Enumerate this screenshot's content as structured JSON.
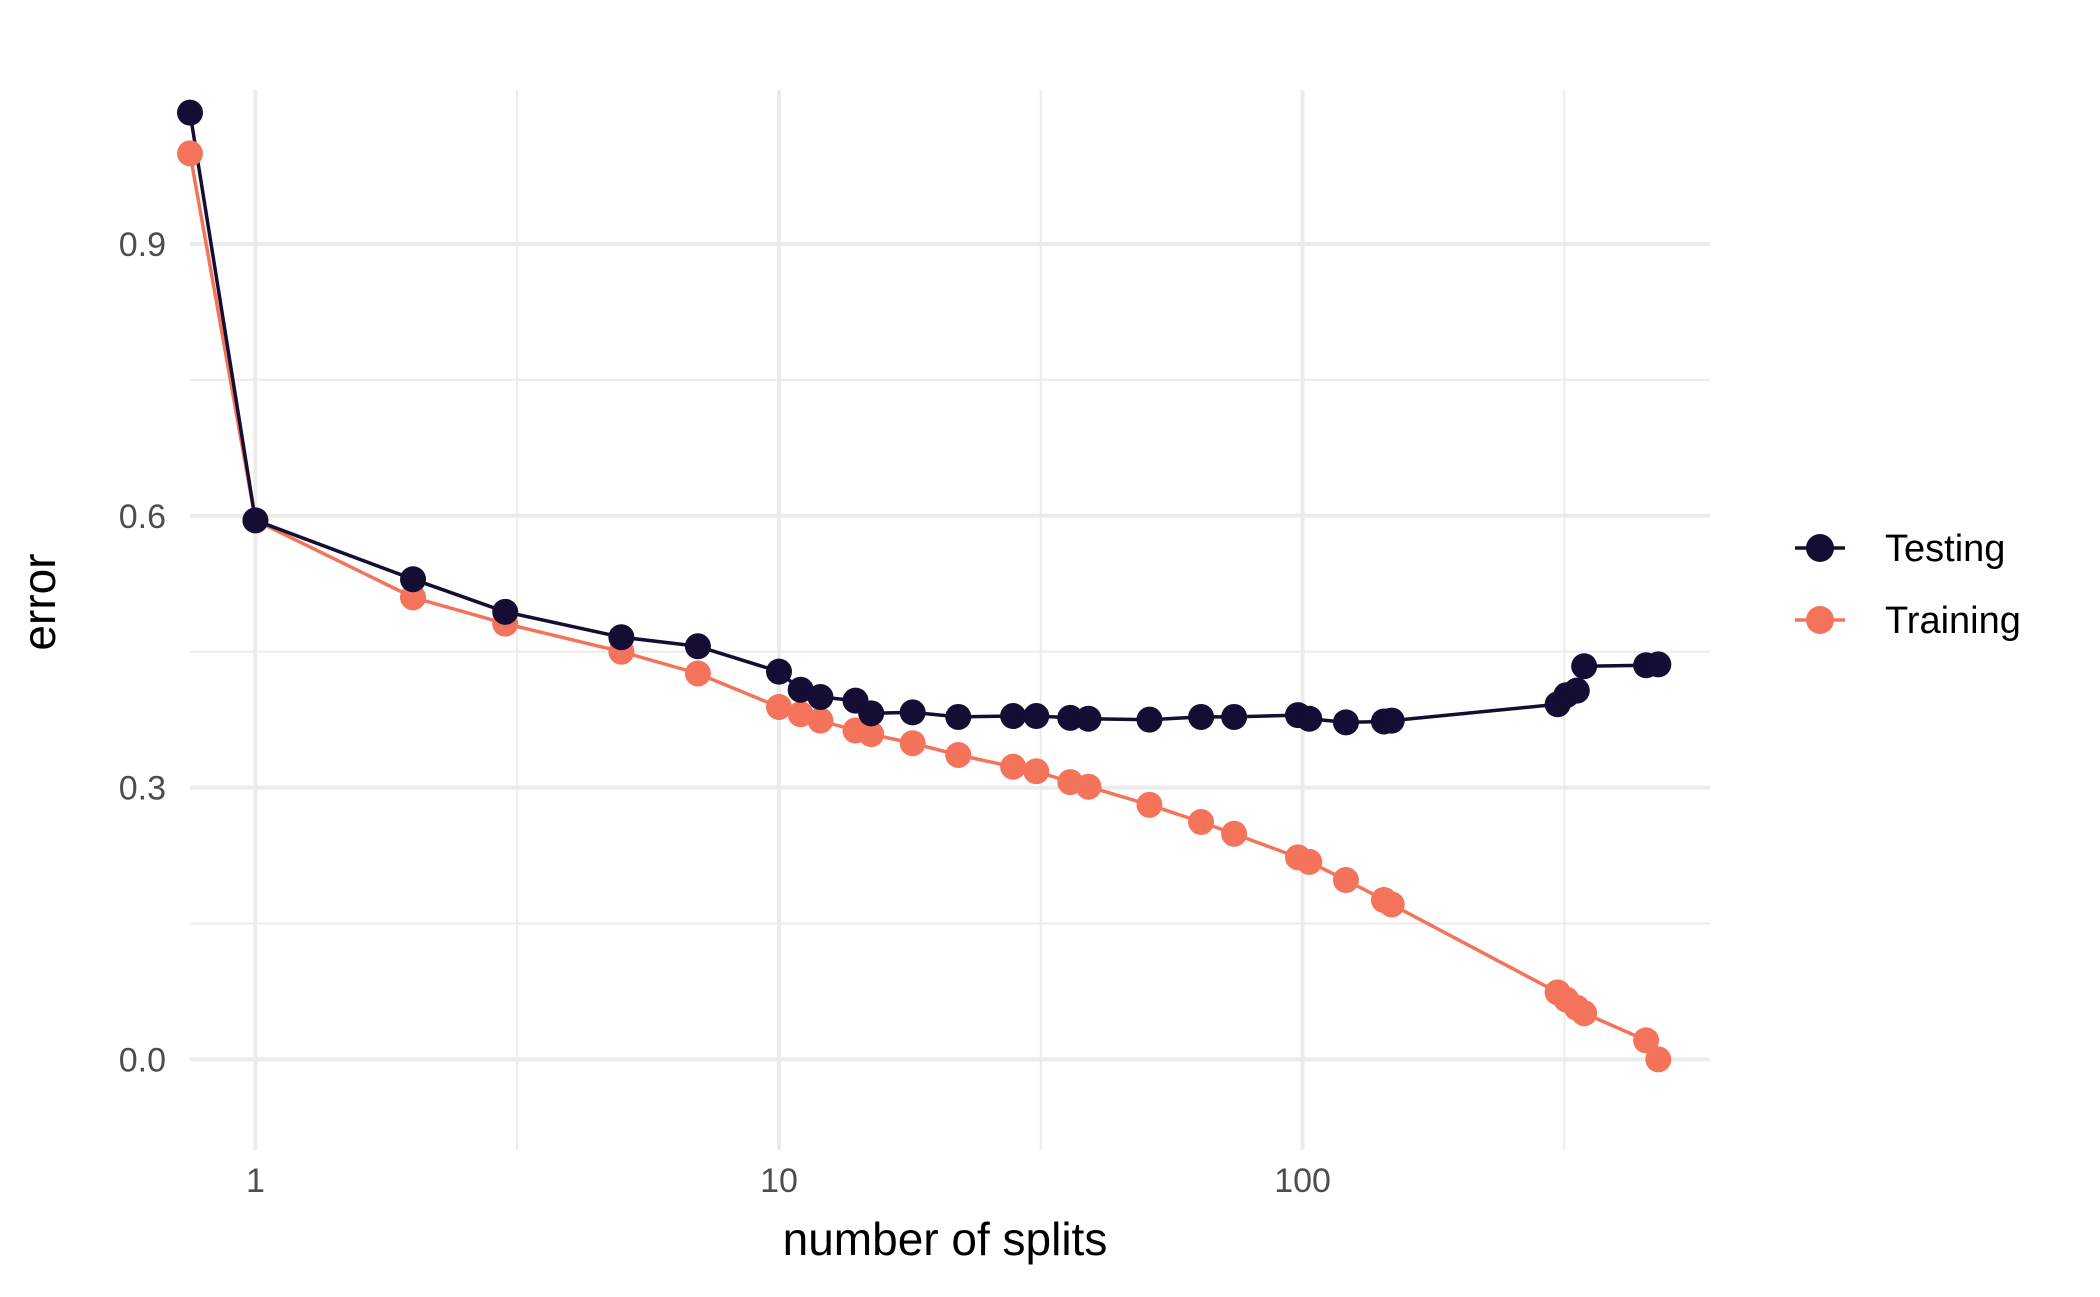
{
  "chart_data": {
    "type": "line",
    "xlabel": "number of splits",
    "ylabel": "error",
    "x_scale": "log10",
    "xlim": [
      0.75,
      600
    ],
    "ylim": [
      -0.1,
      1.07
    ],
    "x_ticks": [
      1,
      10,
      100
    ],
    "x_tick_labels": [
      "1",
      "10",
      "100"
    ],
    "y_ticks": [
      0.0,
      0.3,
      0.6,
      0.9
    ],
    "y_tick_labels": [
      "0.0",
      "0.3",
      "0.6",
      "0.9"
    ],
    "grid": true,
    "legend": "right",
    "x": [
      0.75,
      1,
      2,
      3,
      5,
      7,
      10,
      11,
      12,
      14,
      15,
      18,
      22,
      28,
      31,
      36,
      39,
      51,
      64,
      74,
      98,
      103,
      121,
      143,
      148,
      307,
      319,
      334,
      345,
      453,
      478
    ],
    "series": [
      {
        "name": "Testing",
        "color": "#150d33",
        "values": [
          1.045,
          0.595,
          0.53,
          0.494,
          0.466,
          0.456,
          0.428,
          0.408,
          0.4,
          0.396,
          0.382,
          0.383,
          0.378,
          0.379,
          0.379,
          0.377,
          0.376,
          0.375,
          0.378,
          0.378,
          0.38,
          0.376,
          0.372,
          0.373,
          0.374,
          0.392,
          0.402,
          0.407,
          0.434,
          0.435,
          0.436
        ]
      },
      {
        "name": "Training",
        "color": "#f4735b",
        "values": [
          1.0,
          0.595,
          0.51,
          0.481,
          0.45,
          0.426,
          0.389,
          0.381,
          0.374,
          0.363,
          0.359,
          0.349,
          0.336,
          0.323,
          0.318,
          0.306,
          0.301,
          0.281,
          0.262,
          0.249,
          0.223,
          0.218,
          0.198,
          0.176,
          0.171,
          0.074,
          0.066,
          0.057,
          0.051,
          0.021,
          0.0
        ]
      }
    ]
  }
}
